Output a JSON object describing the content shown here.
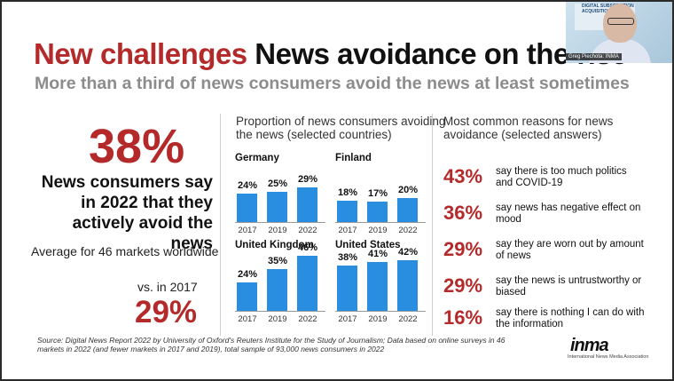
{
  "slide": {
    "title_red": "New challenges",
    "title_black": "News avoidance on the rise",
    "subtitle": "More than a third of news consumers avoid the news at least sometimes"
  },
  "left": {
    "big_stat": "38%",
    "statement": "News consumers say in 2022 that they actively avoid the news",
    "average_note": "Average for 46 markets worldwide",
    "vs_label": "vs. in 2017",
    "vs_value": "29%"
  },
  "middle": {
    "title": "Proportion of news consumers avoiding the news (selected countries)"
  },
  "chart_data": [
    {
      "type": "bar",
      "title": "Germany",
      "categories": [
        "2017",
        "2019",
        "2022"
      ],
      "values": [
        24,
        25,
        29
      ],
      "labels": [
        "24%",
        "25%",
        "29%"
      ]
    },
    {
      "type": "bar",
      "title": "Finland",
      "categories": [
        "2017",
        "2019",
        "2022"
      ],
      "values": [
        18,
        17,
        20
      ],
      "labels": [
        "18%",
        "17%",
        "20%"
      ]
    },
    {
      "type": "bar",
      "title": "United Kingdom",
      "categories": [
        "2017",
        "2019",
        "2022"
      ],
      "values": [
        24,
        35,
        46
      ],
      "labels": [
        "24%",
        "35%",
        "46%"
      ]
    },
    {
      "type": "bar",
      "title": "United States",
      "categories": [
        "2017",
        "2019",
        "2022"
      ],
      "values": [
        38,
        41,
        42
      ],
      "labels": [
        "38%",
        "41%",
        "42%"
      ]
    }
  ],
  "right": {
    "title": "Most common reasons for news avoidance (selected answers)",
    "reasons": [
      {
        "pct": "43%",
        "text": "say there is too much politics and COVID-19"
      },
      {
        "pct": "36%",
        "text": "say news has negative effect on mood"
      },
      {
        "pct": "29%",
        "text": "say they are worn out by amount of news"
      },
      {
        "pct": "29%",
        "text": "say the news is untrustworthy or biased"
      },
      {
        "pct": "16%",
        "text": "say there is nothing I can do with the information"
      }
    ]
  },
  "footer": {
    "source": "Source: Digital News Report 2022 by University of Oxford's Reuters Institute for the Study of Journalism; Data based on online surveys in 46 markets in 2022 (and fewer markets in 2017 and 2019), total sample of 93,000 news consumers in 2022",
    "logo": "inma",
    "logo_sub": "International News Media Association"
  },
  "video": {
    "banner_line1": "DIGITAL SUBSCRIPTION",
    "banner_line2": "ACQUISITION",
    "name": "Greg Piechota: INMA"
  }
}
